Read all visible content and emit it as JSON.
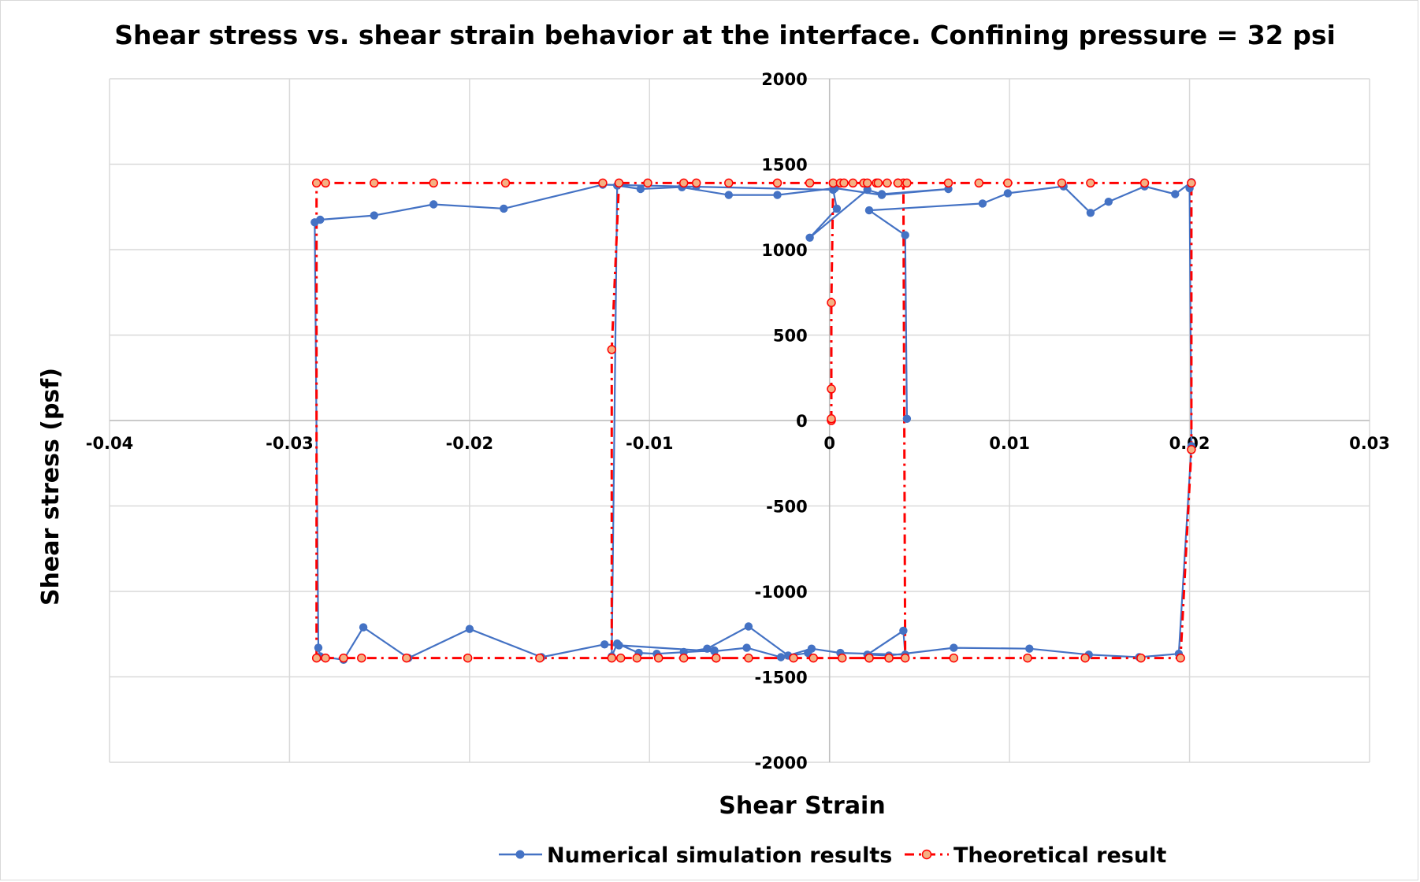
{
  "chart_data": {
    "type": "scatter",
    "title": "Shear stress vs. shear strain behavior at the interface. Confining pressure = 32 psi",
    "xlabel": "Shear Strain",
    "ylabel": "Shear stress (psf)",
    "xlim": [
      -0.04,
      0.03
    ],
    "ylim": [
      -2000,
      2000
    ],
    "xticks": [
      -0.04,
      -0.03,
      -0.02,
      -0.01,
      0,
      0.01,
      0.02,
      0.03
    ],
    "xtick_labels": [
      "-0.04",
      "-0.03",
      "-0.02",
      "-0.01",
      "0",
      "0.01",
      "0.02",
      "0.03"
    ],
    "yticks": [
      -2000,
      -1500,
      -1000,
      -500,
      0,
      500,
      1000,
      1500,
      2000
    ],
    "ytick_labels": [
      "-2000",
      "-1500",
      "-1000",
      "-500",
      "0",
      "500",
      "1000",
      "1500",
      "2000"
    ],
    "grid": true,
    "legend_position": "bottom",
    "series": [
      {
        "name": "Numerical simulation results",
        "color": "#4472C4",
        "line_style": "solid",
        "marker": "circle",
        "points": [
          [
            0.0043,
            10
          ],
          [
            0.0042,
            1085
          ],
          [
            0.0022,
            1230
          ],
          [
            0.0085,
            1270
          ],
          [
            0.0099,
            1330
          ],
          [
            0.013,
            1370
          ],
          [
            0.0145,
            1215
          ],
          [
            0.0155,
            1280
          ],
          [
            0.0175,
            1370
          ],
          [
            0.0192,
            1325
          ],
          [
            0.0201,
            1395
          ],
          [
            0.02,
            1360
          ],
          [
            0.0201,
            -150
          ],
          [
            0.0194,
            -1365
          ],
          [
            0.0172,
            -1385
          ],
          [
            0.0144,
            -1370
          ],
          [
            0.0111,
            -1335
          ],
          [
            0.0069,
            -1330
          ],
          [
            0.0033,
            -1375
          ],
          [
            0.0021,
            -1370
          ],
          [
            0.0041,
            -1230
          ],
          [
            0.0042,
            -1370
          ],
          [
            0.0006,
            -1360
          ],
          [
            -0.001,
            -1335
          ],
          [
            -0.0023,
            -1375
          ],
          [
            -0.0045,
            -1205
          ],
          [
            -0.0068,
            -1335
          ],
          [
            -0.0081,
            -1355
          ],
          [
            -0.0064,
            -1345
          ],
          [
            -0.0096,
            -1365
          ],
          [
            -0.0106,
            -1360
          ],
          [
            -0.0118,
            -1305
          ],
          [
            -0.0121,
            -1380
          ],
          [
            -0.0118,
            1375
          ],
          [
            -0.0105,
            1355
          ],
          [
            -0.0074,
            1370
          ],
          [
            -0.0082,
            1365
          ],
          [
            -0.0056,
            1320
          ],
          [
            -0.0029,
            1320
          ],
          [
            0.0003,
            1360
          ],
          [
            0.0029,
            1320
          ],
          [
            0.0066,
            1355
          ],
          [
            0.0029,
            1325
          ],
          [
            0.0021,
            1350
          ],
          [
            -0.0011,
            1070
          ],
          [
            0.0004,
            1240
          ],
          [
            0.0002,
            1350
          ],
          [
            -0.0126,
            1380
          ],
          [
            -0.0181,
            1240
          ],
          [
            -0.022,
            1265
          ],
          [
            -0.0253,
            1200
          ],
          [
            -0.0283,
            1175
          ],
          [
            -0.0286,
            1160
          ],
          [
            -0.0284,
            -1330
          ],
          [
            -0.0283,
            -1380
          ],
          [
            -0.027,
            -1400
          ],
          [
            -0.0259,
            -1210
          ],
          [
            -0.0234,
            -1390
          ],
          [
            -0.02,
            -1220
          ],
          [
            -0.016,
            -1385
          ],
          [
            -0.0125,
            -1310
          ],
          [
            -0.0117,
            -1315
          ],
          [
            -0.0064,
            -1350
          ],
          [
            -0.0046,
            -1330
          ],
          [
            -0.0027,
            -1385
          ],
          [
            -0.0012,
            -1360
          ]
        ]
      },
      {
        "name": "Theoretical result",
        "color": "#FF0000",
        "marker_fill": "#F4B183",
        "line_style": "dash-dot",
        "marker": "circle",
        "points": [
          [
            0.0001,
            0
          ],
          [
            0.0001,
            10
          ],
          [
            0.0001,
            185
          ],
          [
            0.0001,
            690
          ],
          [
            0.0002,
            1390
          ],
          [
            0.0006,
            1390
          ],
          [
            0.0013,
            1390
          ],
          [
            0.0019,
            1390
          ],
          [
            0.0026,
            1390
          ],
          [
            0.0032,
            1390
          ],
          [
            0.0038,
            1390
          ],
          [
            0.0041,
            1390
          ],
          [
            0.0042,
            -1390
          ],
          [
            0.0033,
            -1390
          ],
          [
            0.0022,
            -1390
          ],
          [
            0.0007,
            -1390
          ],
          [
            -0.0009,
            -1390
          ],
          [
            -0.002,
            -1390
          ],
          [
            -0.0045,
            -1390
          ],
          [
            -0.0063,
            -1390
          ],
          [
            -0.0081,
            -1390
          ],
          [
            -0.0095,
            -1390
          ],
          [
            -0.0107,
            -1390
          ],
          [
            -0.0116,
            -1390
          ],
          [
            -0.0121,
            -1390
          ],
          [
            -0.0121,
            415
          ],
          [
            -0.0117,
            1390
          ],
          [
            -0.0101,
            1390
          ],
          [
            -0.0081,
            1390
          ],
          [
            -0.0074,
            1390
          ],
          [
            -0.0056,
            1390
          ],
          [
            -0.0029,
            1390
          ],
          [
            -0.0011,
            1390
          ],
          [
            0.0008,
            1390
          ],
          [
            0.0021,
            1390
          ],
          [
            0.0027,
            1390
          ],
          [
            0.0038,
            1390
          ],
          [
            0.0043,
            1390
          ],
          [
            0.0066,
            1390
          ],
          [
            0.0083,
            1390
          ],
          [
            0.0099,
            1390
          ],
          [
            0.0129,
            1390
          ],
          [
            0.0145,
            1390
          ],
          [
            0.0175,
            1390
          ],
          [
            0.0201,
            1390
          ],
          [
            0.0201,
            -170
          ],
          [
            0.0195,
            -1390
          ],
          [
            0.0173,
            -1390
          ],
          [
            0.0142,
            -1390
          ],
          [
            0.011,
            -1390
          ],
          [
            0.0069,
            -1390
          ],
          [
            0.0033,
            -1390
          ],
          [
            0.0022,
            -1390
          ],
          [
            -0.0063,
            -1390
          ],
          [
            -0.0161,
            -1390
          ],
          [
            -0.0201,
            -1390
          ],
          [
            -0.0235,
            -1390
          ],
          [
            -0.026,
            -1390
          ],
          [
            -0.027,
            -1390
          ],
          [
            -0.028,
            -1390
          ],
          [
            -0.0285,
            -1390
          ],
          [
            -0.0285,
            1390
          ],
          [
            -0.028,
            1390
          ],
          [
            -0.0253,
            1390
          ],
          [
            -0.022,
            1390
          ],
          [
            -0.018,
            1390
          ],
          [
            -0.0126,
            1390
          ]
        ]
      }
    ]
  }
}
